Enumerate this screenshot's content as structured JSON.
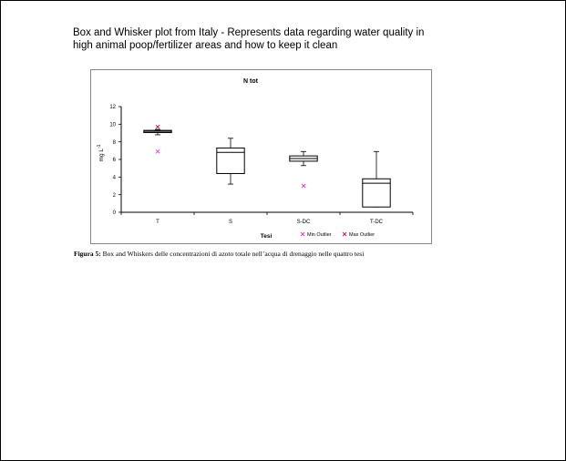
{
  "slide": {
    "heading_line1": "Box and Whisker plot from Italy - Represents data regarding water quality in",
    "heading_line2": "high animal poop/fertilizer areas and how to keep it clean"
  },
  "caption": {
    "label": "Figura 5:",
    "text": " Box and Whiskers delle concentrazioni di azoto totale nell’acqua di drenaggio nelle quattro tesi"
  },
  "chart_data": {
    "type": "box",
    "title": "N tot",
    "xlabel": "Tesi",
    "ylabel": "mg L",
    "ylabel_superscript": "-1",
    "ylim": [
      0,
      12
    ],
    "yticks": [
      0,
      2,
      4,
      6,
      8,
      10,
      12
    ],
    "categories": [
      "T",
      "S",
      "S-DC",
      "T-DC"
    ],
    "boxes": [
      {
        "category": "T",
        "min": 8.8,
        "q1": 9.05,
        "median": 9.2,
        "q3": 9.3,
        "max": 9.4,
        "min_outliers": [
          6.9
        ],
        "max_outliers": [
          9.7
        ]
      },
      {
        "category": "S",
        "min": 3.2,
        "q1": 4.4,
        "median": 6.8,
        "q3": 7.3,
        "max": 8.4,
        "min_outliers": [],
        "max_outliers": []
      },
      {
        "category": "S-DC",
        "min": 5.3,
        "q1": 5.8,
        "median": 6.1,
        "q3": 6.4,
        "max": 6.9,
        "min_outliers": [
          3.0
        ],
        "max_outliers": []
      },
      {
        "category": "T-DC",
        "min": 0.6,
        "q1": 0.6,
        "median": 3.3,
        "q3": 3.8,
        "max": 6.9,
        "min_outliers": [],
        "max_outliers": []
      }
    ],
    "legend": [
      {
        "label": "Min Outlier",
        "color": "#e040e0",
        "marker": "x"
      },
      {
        "label": "Max Outlier",
        "color": "#c02060",
        "marker": "x"
      }
    ],
    "legend_position": "bottom-right",
    "grid": false
  }
}
